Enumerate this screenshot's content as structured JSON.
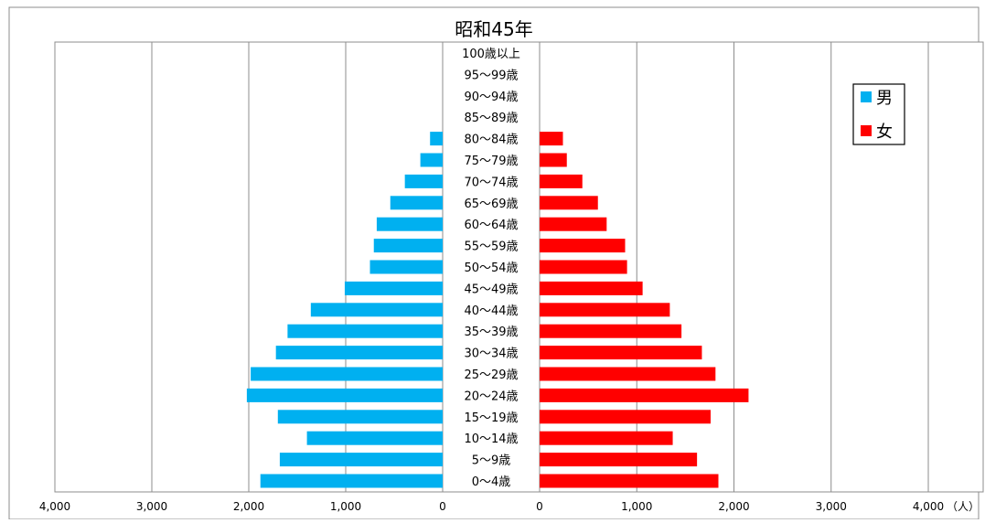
{
  "chart_data": {
    "type": "bar",
    "orientation": "horizontal-pyramid",
    "title": "昭和45年",
    "unit": "（人）",
    "categories": [
      "100歳以上",
      "95～99歳",
      "90～94歳",
      "85～89歳",
      "80～84歳",
      "75～79歳",
      "70～74歳",
      "65～69歳",
      "60～64歳",
      "55～59歳",
      "50～54歳",
      "45～49歳",
      "40～44歳",
      "35～39歳",
      "30～34歳",
      "25～29歳",
      "20～24歳",
      "15～19歳",
      "10～14歳",
      "5～9歳",
      "0～4歳"
    ],
    "series": [
      {
        "name": "男",
        "color": "#00B0F0",
        "side": "left",
        "values": [
          0,
          0,
          0,
          0,
          130,
          230,
          390,
          540,
          680,
          710,
          750,
          1010,
          1360,
          1600,
          1720,
          1980,
          2020,
          1700,
          1400,
          1680,
          1880
        ]
      },
      {
        "name": "女",
        "color": "#FF0000",
        "side": "right",
        "values": [
          0,
          0,
          0,
          0,
          240,
          280,
          440,
          600,
          690,
          880,
          900,
          1060,
          1340,
          1460,
          1670,
          1810,
          2150,
          1760,
          1370,
          1620,
          1840
        ]
      }
    ],
    "xlim": [
      0,
      4000
    ],
    "left_ticks": [
      "4,000",
      "3,000",
      "2,000",
      "1,000",
      "0"
    ],
    "right_ticks": [
      "0",
      "1,000",
      "2,000",
      "3,000",
      "4,000"
    ],
    "grid": true,
    "legend_position": "top-right"
  }
}
